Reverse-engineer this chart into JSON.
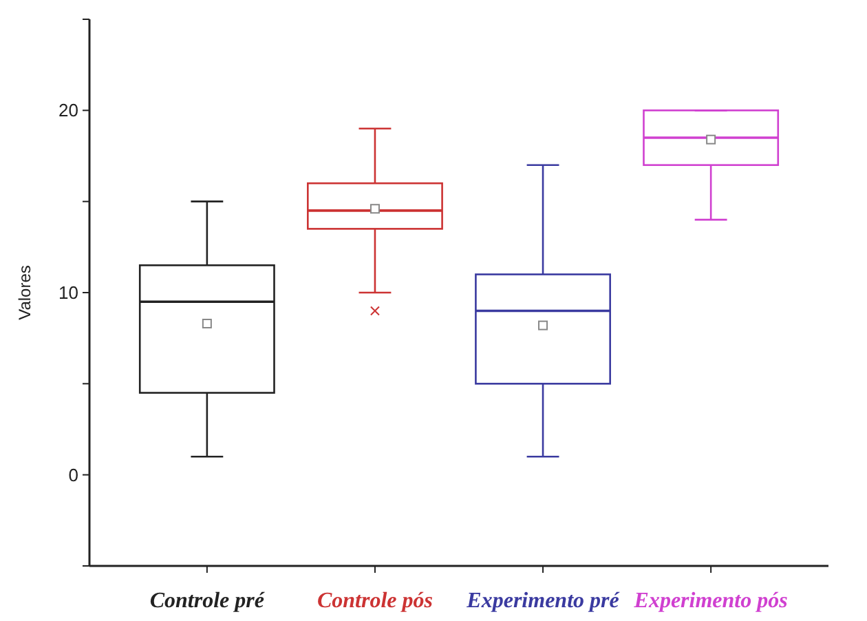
{
  "chart_data": {
    "type": "box",
    "ylabel": "Valores",
    "categories": [
      "Controle pré",
      "Controle pós",
      "Experimento pré",
      "Experimento pós"
    ],
    "colors": [
      "#222222",
      "#cc3333",
      "#3a3aa0",
      "#d040d0"
    ],
    "boxes": [
      {
        "low": 1,
        "q1": 4.5,
        "median": 9.5,
        "q3": 11.5,
        "high": 15,
        "mean": 8.3
      },
      {
        "low": 10,
        "q1": 13.5,
        "median": 14.5,
        "q3": 16,
        "high": 19,
        "mean": 14.6,
        "outliers": [
          9
        ]
      },
      {
        "low": 1,
        "q1": 5,
        "median": 9,
        "q3": 11,
        "high": 17,
        "mean": 8.2
      },
      {
        "low": 14,
        "q1": 17,
        "median": 18.5,
        "q3": 20,
        "high": 20,
        "mean": 18.4
      }
    ],
    "ylim": [
      -5,
      25
    ],
    "yticks": [
      {
        "value": -5,
        "label": null
      },
      0,
      {
        "value": 5,
        "label": null
      },
      10,
      {
        "value": 15,
        "label": null
      },
      20,
      {
        "value": 25,
        "label": null
      }
    ],
    "grid": false
  }
}
